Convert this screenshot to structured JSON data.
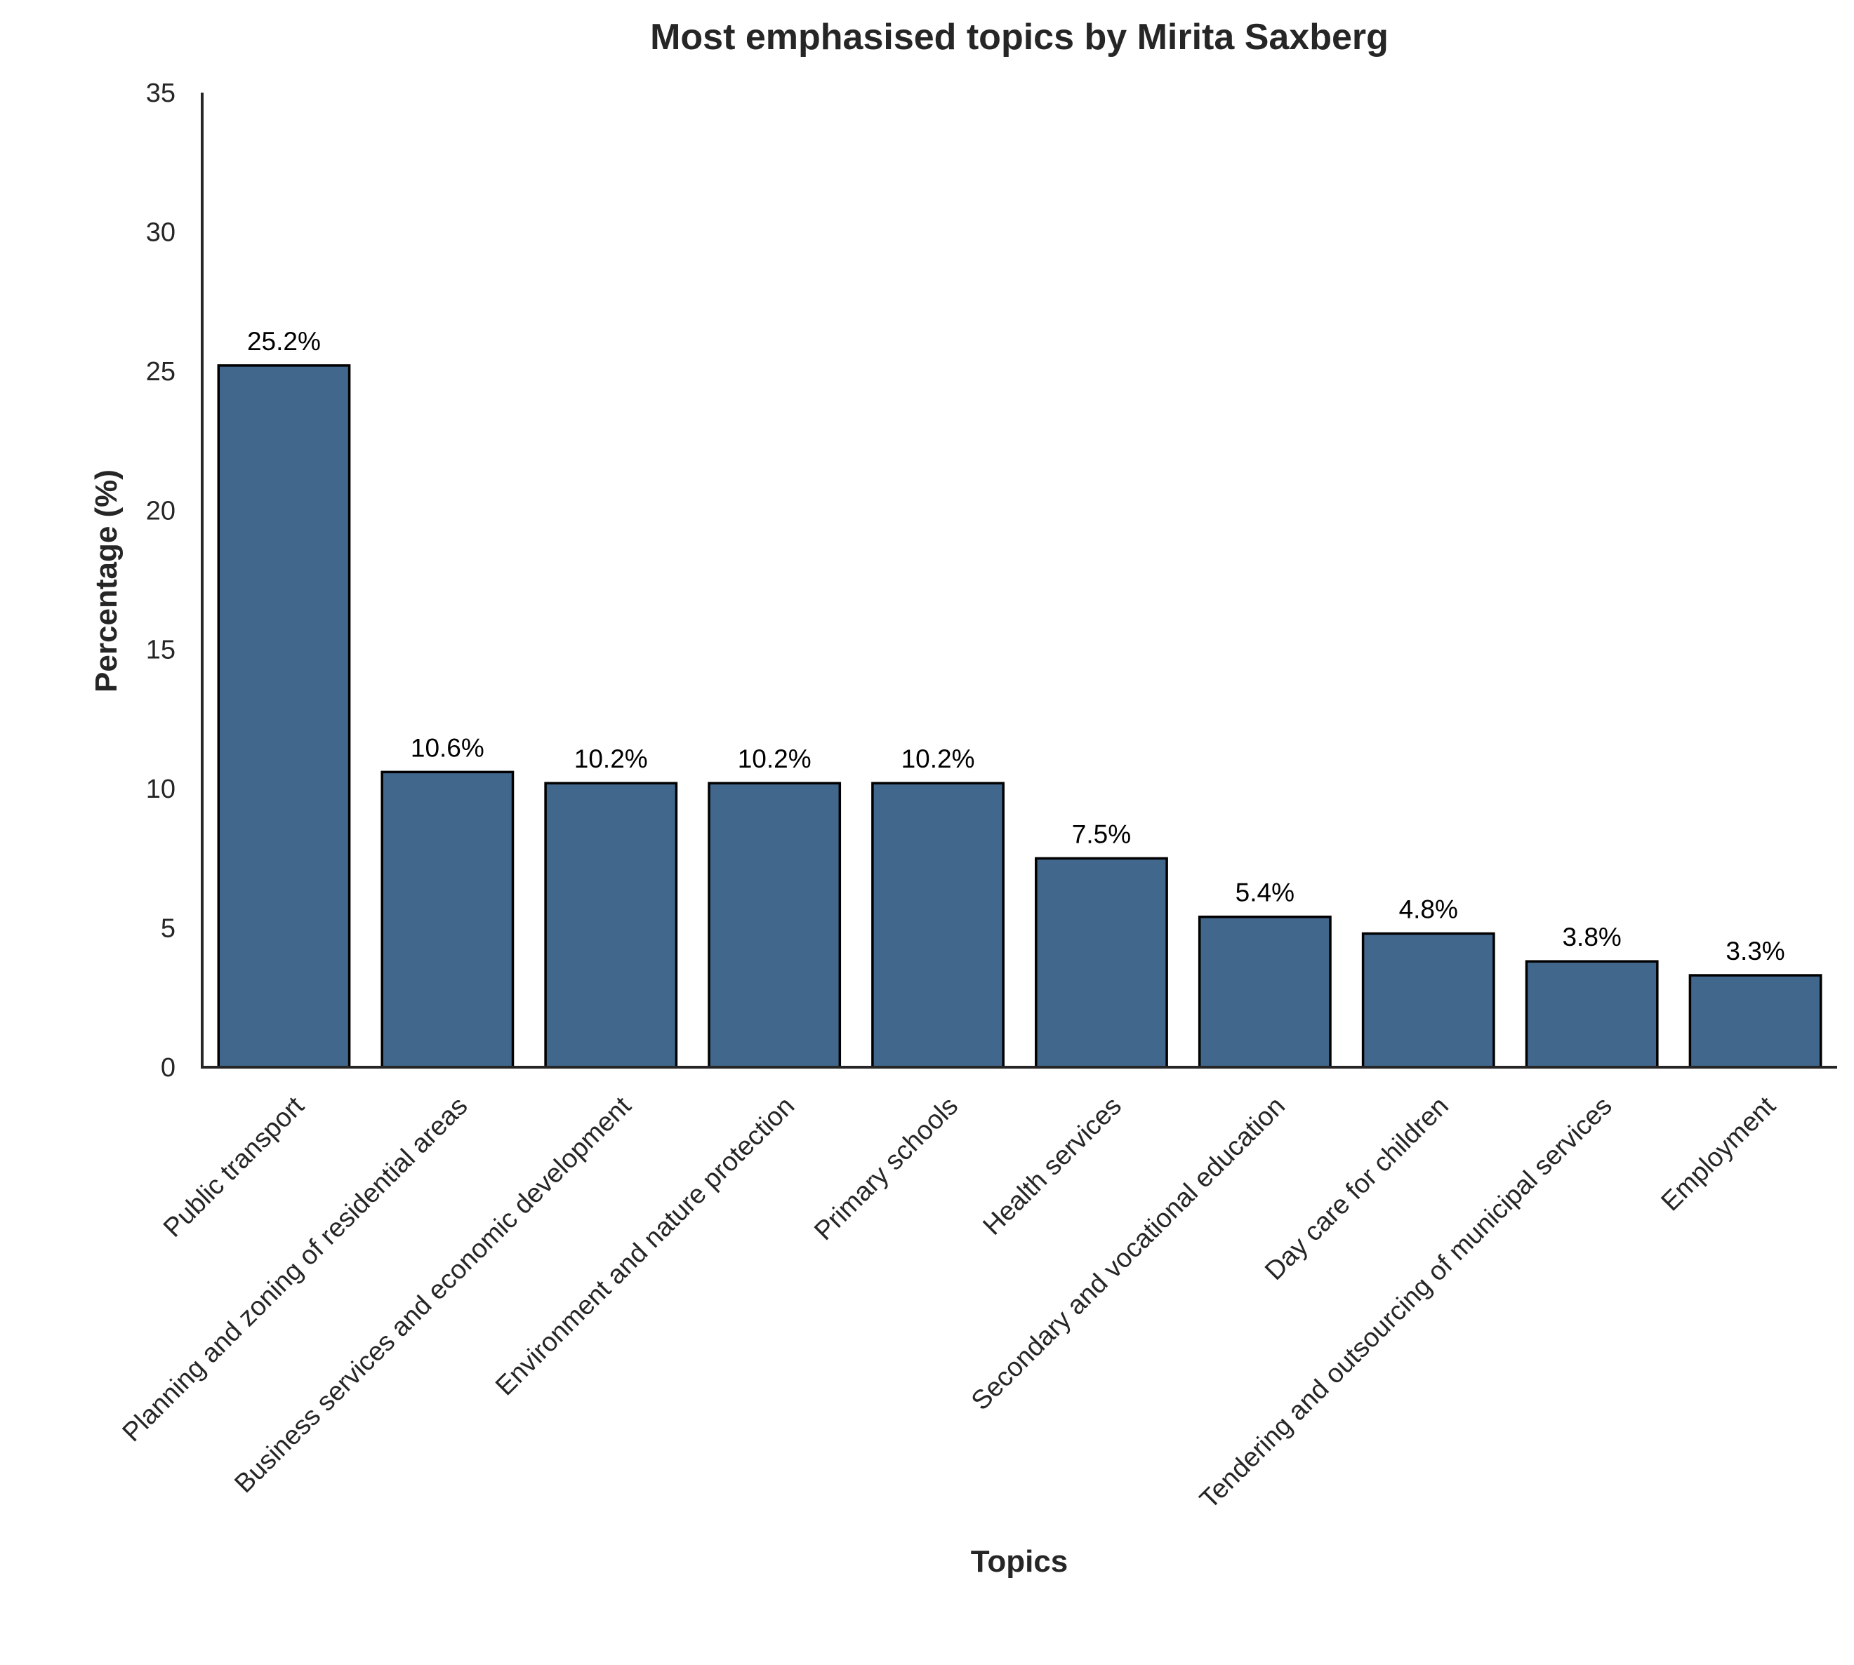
{
  "chart_data": {
    "type": "bar",
    "title": "Most emphasised topics by Mirita Saxberg",
    "xlabel": "Topics",
    "ylabel": "Percentage (%)",
    "ylim": [
      0,
      35
    ],
    "yticks": [
      0,
      5,
      10,
      15,
      20,
      25,
      30,
      35
    ],
    "grid": false,
    "legend": "none",
    "bar_color": "#41678c",
    "bar_edge_color": "#000000",
    "categories": [
      "Public transport",
      "Planning and zoning of residential areas",
      "Business services and economic development",
      "Environment and nature protection",
      "Primary schools",
      "Health services",
      "Secondary and vocational education",
      "Day care for children",
      "Tendering and outsourcing of municipal services",
      "Employment"
    ],
    "values": [
      25.2,
      10.6,
      10.2,
      10.2,
      10.2,
      7.5,
      5.4,
      4.8,
      3.8,
      3.3
    ],
    "data_labels": [
      "25.2%",
      "10.6%",
      "10.2%",
      "10.2%",
      "10.2%",
      "7.5%",
      "5.4%",
      "4.8%",
      "3.8%",
      "3.3%"
    ]
  }
}
